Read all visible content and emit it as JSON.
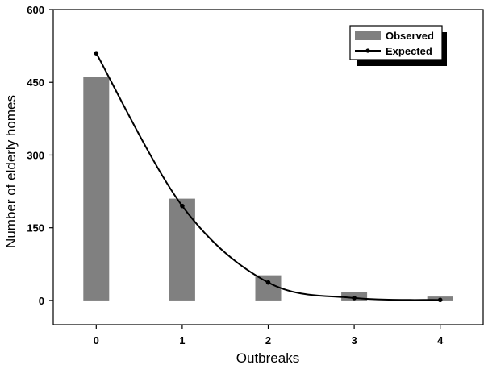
{
  "chart_data": {
    "type": "bar",
    "categories": [
      "0",
      "1",
      "2",
      "3",
      "4"
    ],
    "x": [
      0,
      1,
      2,
      3,
      4
    ],
    "series": [
      {
        "name": "Observed",
        "type": "bar",
        "values": [
          462,
          210,
          52,
          18,
          8
        ],
        "color": "#808080"
      },
      {
        "name": "Expected",
        "type": "line",
        "values": [
          510,
          195,
          37,
          5,
          1
        ],
        "color": "#000000"
      }
    ],
    "title": "",
    "xlabel": "Outbreaks",
    "ylabel": "Number of elderly homes",
    "ylim": [
      -50,
      600
    ],
    "xlim": [
      -0.5,
      4.5
    ],
    "yticks": [
      0,
      150,
      300,
      450,
      600
    ],
    "grid": false,
    "legend_position": "top-right"
  }
}
